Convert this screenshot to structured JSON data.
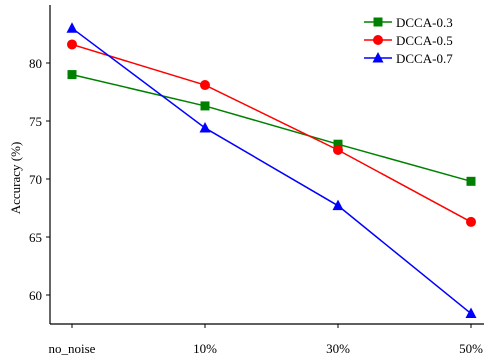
{
  "chart_data": {
    "type": "line",
    "categories": [
      "no_noise",
      "10%",
      "30%",
      "50%"
    ],
    "ylabel": "Accuracy (%)",
    "xlabel": "",
    "title": "",
    "ylim": [
      57.5,
      85
    ],
    "yticks": [
      60,
      65,
      70,
      75,
      80
    ],
    "grid": false,
    "legend_position": "top-right",
    "series": [
      {
        "name": "DCCA-0.3",
        "color": "#008000",
        "marker": "square",
        "values": [
          79.0,
          76.3,
          73.0,
          69.8
        ]
      },
      {
        "name": "DCCA-0.5",
        "color": "#ff0000",
        "marker": "circle",
        "values": [
          81.6,
          78.1,
          72.5,
          66.3
        ]
      },
      {
        "name": "DCCA-0.7",
        "color": "#0000ff",
        "marker": "triangle",
        "values": [
          83.0,
          74.4,
          67.7,
          58.4
        ]
      }
    ]
  }
}
